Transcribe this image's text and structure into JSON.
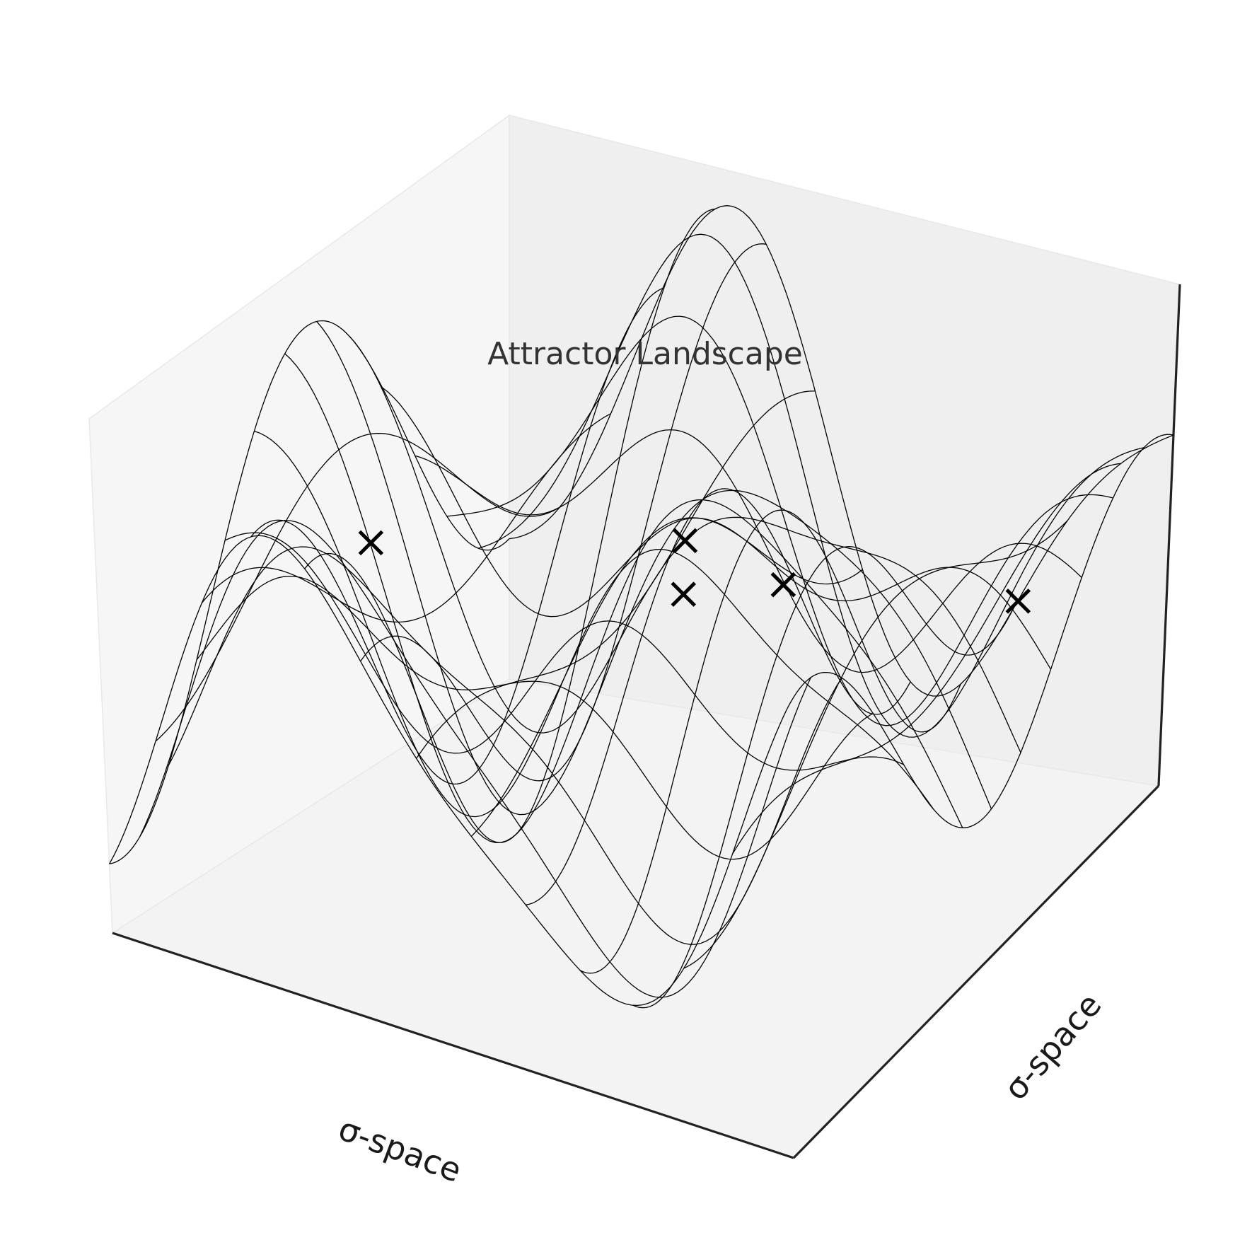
{
  "chart_data": {
    "type": "surface-wireframe-3d",
    "title": "Attractor Landscape",
    "xlabel": "σ-space",
    "ylabel": "σ-space",
    "zlabel": "",
    "grid": false,
    "ticks": false,
    "surface": {
      "x_range": [
        -3.14,
        3.14
      ],
      "y_range": [
        -3.14,
        3.14
      ],
      "z_range": [
        -1.7,
        1.7
      ],
      "rows": 14,
      "cols": 14,
      "color": "#000000"
    },
    "markers": {
      "symbol": "x",
      "color": "#000000",
      "points": [
        {
          "x": -2.4,
          "y": -0.2,
          "z": 0.15
        },
        {
          "x": -0.3,
          "y": 1.2,
          "z": 0.1
        },
        {
          "x": 0.1,
          "y": 0.5,
          "z": 0.05
        },
        {
          "x": 0.8,
          "y": 0.9,
          "z": 0.1
        },
        {
          "x": 2.6,
          "y": 1.6,
          "z": 0.05
        }
      ]
    },
    "pane_colors": {
      "left": "#f6f6f6",
      "right": "#efefef",
      "floor": "#f3f3f3"
    }
  }
}
